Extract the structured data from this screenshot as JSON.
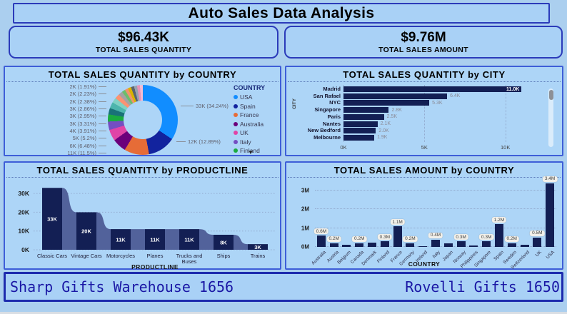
{
  "title": "Auto Sales Data Analysis",
  "kpis": [
    {
      "value": "$96.43K",
      "label": "TOTAL SALES QUANTITY"
    },
    {
      "value": "$9.76M",
      "label": "TOTAL SALES AMOUNT"
    }
  ],
  "ticker": {
    "left": "Sharp Gifts Warehouse 1656",
    "right": "Rovelli Gifts 1650"
  },
  "colors": {
    "bar_navy": "#131F54",
    "ribbon": "#52629B",
    "panel_bg": "#ADD5F7",
    "border_blue": "#3E5ED8",
    "accent_navy": "#12239E"
  },
  "chart_data": [
    {
      "type": "pie",
      "title": "TOTAL SALES QUANTITY by COUNTRY",
      "legend_position": "right",
      "legend_title": "COUNTRY",
      "legend": [
        {
          "label": "USA",
          "color": "#118DFF"
        },
        {
          "label": "Spain",
          "color": "#12239E"
        },
        {
          "label": "France",
          "color": "#E66C37"
        },
        {
          "label": "Australia",
          "color": "#6B007B"
        },
        {
          "label": "UK",
          "color": "#E044A7"
        },
        {
          "label": "Italy",
          "color": "#744EC2"
        },
        {
          "label": "Finland",
          "color": "#1AAB40"
        }
      ],
      "slices": [
        {
          "label": "33K (34.24%)",
          "pct": 34.24,
          "color": "#118DFF"
        },
        {
          "label": "12K (12.89%)",
          "pct": 12.89,
          "color": "#12239E"
        },
        {
          "label": "11K (11.5%)",
          "pct": 11.5,
          "color": "#E66C37"
        },
        {
          "label": "6K (6.48%)",
          "pct": 6.48,
          "color": "#6B007B"
        },
        {
          "label": "5K (5.2%)",
          "pct": 5.2,
          "color": "#E044A7"
        },
        {
          "label": "4K (3.91%)",
          "pct": 3.91,
          "color": "#744EC2"
        },
        {
          "label": "3K (3.31%)",
          "pct": 3.31,
          "color": "#1AAB40"
        },
        {
          "label": "3K (2.95%)",
          "pct": 2.95,
          "color": "#197278"
        },
        {
          "label": "3K (2.86%)",
          "pct": 2.86,
          "color": "#4CB5AD"
        },
        {
          "label": "2K (2.38%)",
          "pct": 2.38,
          "color": "#7FD1C4"
        },
        {
          "label": "2K (2.23%)",
          "pct": 2.23,
          "color": "#FC9272"
        },
        {
          "label": "2K (1.91%)",
          "pct": 1.91,
          "color": "#A3A3A3"
        }
      ],
      "other_slices": [
        {
          "pct": 1.6,
          "color": "#6BBE6C"
        },
        {
          "pct": 1.5,
          "color": "#F0936E"
        },
        {
          "pct": 1.5,
          "color": "#D9B300"
        },
        {
          "pct": 1.45,
          "color": "#5A6470"
        },
        {
          "pct": 1.4,
          "color": "#97A3B0"
        },
        {
          "pct": 1.35,
          "color": "#E893B8"
        },
        {
          "pct": 1.34,
          "color": "#F4BDD3"
        }
      ],
      "callouts_left": [
        "2K (1.91%)",
        "2K (2.23%)",
        "2K (2.38%)",
        "3K (2.86%)",
        "3K (2.95%)",
        "3K (3.31%)",
        "4K (3.91%)",
        "5K (5.2%)",
        "6K (6.48%)",
        "11K (11.5%)"
      ],
      "callouts_right": [
        "33K (34.24%)",
        "12K (12.89%)"
      ]
    },
    {
      "type": "bar",
      "orientation": "horizontal",
      "title": "TOTAL SALES QUANTITY by CITY",
      "ylabel": "CITY",
      "categories": [
        "Madrid",
        "San Rafael",
        "NYC",
        "Singapore",
        "Paris",
        "Nantes",
        "New Bedford",
        "Melbourne"
      ],
      "values": [
        11.0,
        6.4,
        5.3,
        2.8,
        2.5,
        2.1,
        2.0,
        1.9
      ],
      "value_labels": [
        "11.0K",
        "6.4K",
        "5.3K",
        "2.8K",
        "2.5K",
        "2.1K",
        "2.0K",
        "1.9K"
      ],
      "x_ticks": [
        "0K",
        "5K",
        "10K"
      ],
      "x_tick_values": [
        0,
        5,
        10
      ],
      "xlim": [
        0,
        12
      ],
      "grid": true,
      "scrollbar": true
    },
    {
      "type": "area",
      "subtype": "ribbon-funnel",
      "title": "TOTAL SALES QUANTITY by PRODUCTLINE",
      "xlabel": "PRODUCTLINE",
      "categories": [
        "Classic Cars",
        "Vintage Cars",
        "Motorcycles",
        "Planes",
        "Trucks and|Buses",
        "Ships",
        "Trains"
      ],
      "values": [
        33,
        20,
        11,
        11,
        11,
        8,
        3
      ],
      "value_labels": [
        "33K",
        "20K",
        "11K",
        "11K",
        "11K",
        "8K",
        "3K"
      ],
      "y_ticks": [
        "0K",
        "10K",
        "20K",
        "30K"
      ],
      "y_tick_values": [
        0,
        10,
        20,
        30
      ],
      "ylim": [
        0,
        35
      ],
      "grid": true
    },
    {
      "type": "bar",
      "orientation": "vertical",
      "title": "TOTAL SALES AMOUNT by COUNTRY",
      "xlabel": "COUNTRY",
      "categories": [
        "Australia",
        "Austria",
        "Belgium",
        "Canada",
        "Denmark",
        "Finland",
        "France",
        "Germany",
        "Ireland",
        "Italy",
        "Japan",
        "Norway",
        "Philippines",
        "Singapore",
        "Spain",
        "Sweden",
        "Switzerland",
        "UK",
        "USA"
      ],
      "values": [
        0.6,
        0.2,
        0.1,
        0.2,
        0.24,
        0.3,
        1.1,
        0.2,
        0.05,
        0.4,
        0.18,
        0.3,
        0.09,
        0.3,
        1.2,
        0.2,
        0.1,
        0.5,
        3.4
      ],
      "value_labels": [
        "0.6M",
        "0.2M",
        "",
        "0.2M",
        "",
        "0.3M",
        "1.1M",
        "0.2M",
        "",
        "0.4M",
        "",
        "0.3M",
        "",
        "0.3M",
        "1.2M",
        "0.2M",
        "",
        "0.5M",
        "3.4M"
      ],
      "y_ticks": [
        "0M",
        "1M",
        "2M",
        "3M"
      ],
      "y_tick_values": [
        0,
        1,
        2,
        3
      ],
      "ylim": [
        0,
        3.5
      ],
      "grid": true
    }
  ]
}
